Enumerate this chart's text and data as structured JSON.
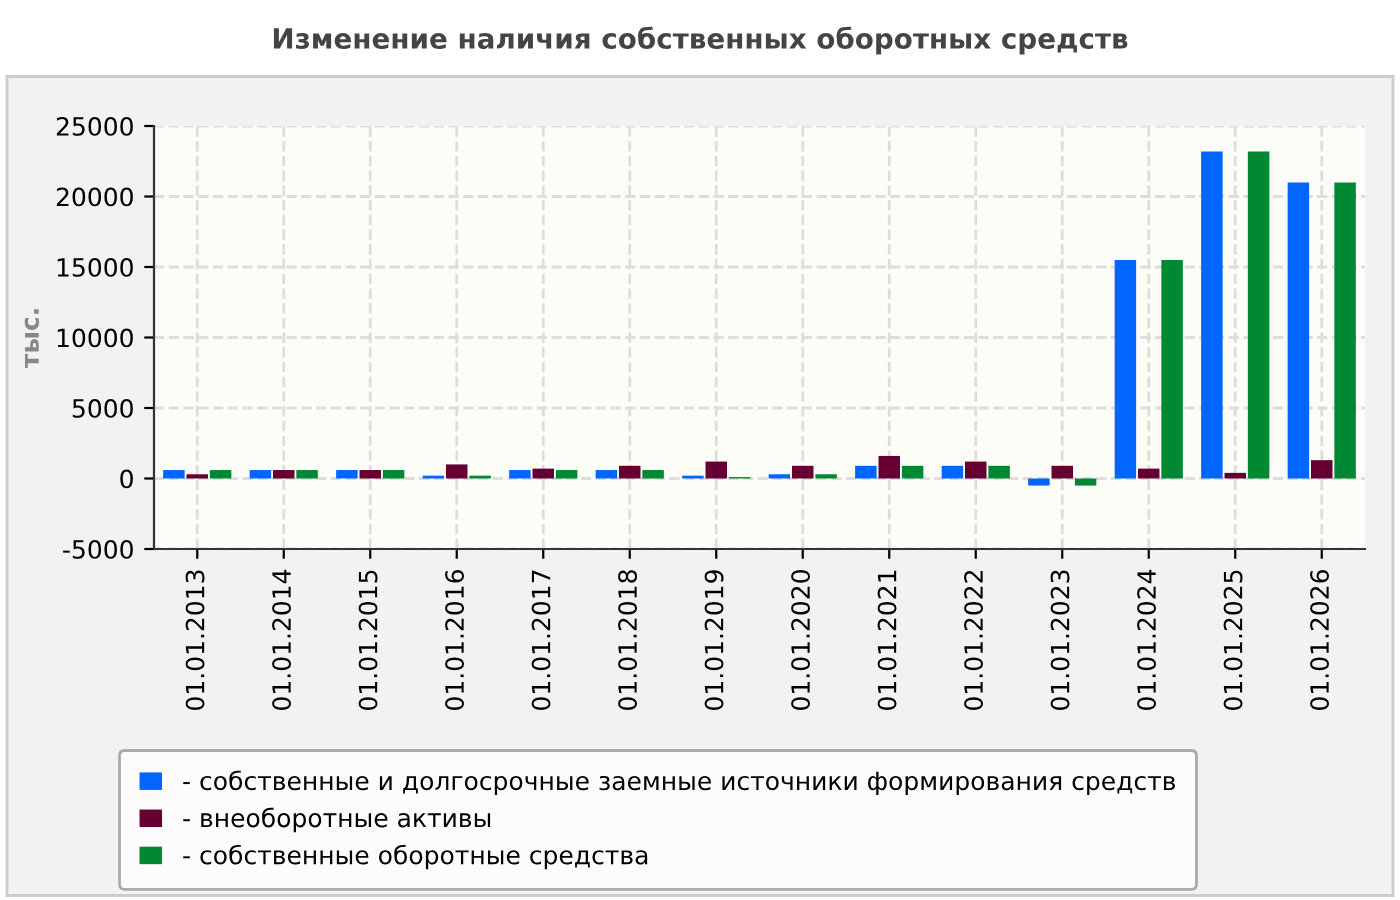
{
  "chart_data": {
    "type": "bar",
    "title": "Изменение наличия собственных оборотных средств",
    "ylabel": "тыс.",
    "categories": [
      "01.01.2013",
      "01.01.2014",
      "01.01.2015",
      "01.01.2016",
      "01.01.2017",
      "01.01.2018",
      "01.01.2019",
      "01.01.2020",
      "01.01.2021",
      "01.01.2022",
      "01.01.2023",
      "01.01.2024",
      "01.01.2025",
      "01.01.2026"
    ],
    "series": [
      {
        "name": "- собственные и долгосрочные заемные источники формирования средств",
        "color": "#0066ff",
        "values": [
          600,
          600,
          600,
          200,
          600,
          600,
          200,
          300,
          900,
          900,
          -500,
          15500,
          23200,
          21000
        ]
      },
      {
        "name": "- внеоборотные активы",
        "color": "#660033",
        "values": [
          300,
          600,
          600,
          1000,
          700,
          900,
          1200,
          900,
          1600,
          1200,
          900,
          700,
          400,
          1300
        ]
      },
      {
        "name": "- собственные оборотные средства",
        "color": "#008833",
        "values": [
          600,
          600,
          600,
          200,
          600,
          600,
          100,
          300,
          900,
          900,
          -500,
          15500,
          23200,
          21000
        ]
      }
    ],
    "ylim": [
      -5000,
      25000
    ],
    "yticks": [
      -5000,
      0,
      5000,
      10000,
      15000,
      20000,
      25000
    ],
    "grid": true,
    "legend": "bottom"
  }
}
